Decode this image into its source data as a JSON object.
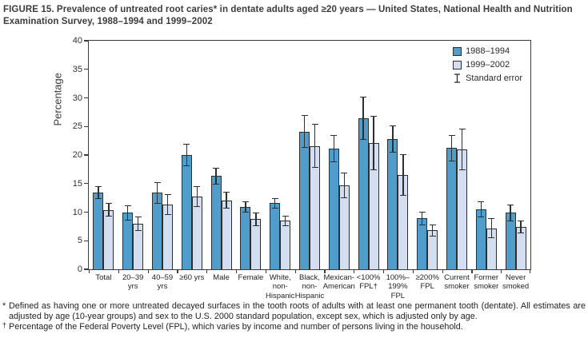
{
  "title": "FIGURE 15. Prevalence of untreated root caries* in dentate adults aged ≥20 years — United States, National Health and Nutrition Examination Survey, 1988–1994 and 1999–2002",
  "chart_data": {
    "type": "bar",
    "title": "",
    "xlabel": "",
    "ylabel": "Percentage",
    "ylim": [
      0,
      40
    ],
    "ytick_step": 5,
    "grid": false,
    "legend_position": "inside-top-right",
    "legend": [
      {
        "label": "1988–1994",
        "color": "#4f9dca",
        "symbol": "swatch"
      },
      {
        "label": "1999–2002",
        "color": "#d3def0",
        "symbol": "swatch"
      },
      {
        "label": "Standard error",
        "symbol": "error-bar"
      }
    ],
    "categories": [
      [
        "Total"
      ],
      [
        "20–39",
        "yrs"
      ],
      [
        "40–59",
        "yrs"
      ],
      [
        "≥60 yrs"
      ],
      [
        "Male"
      ],
      [
        "Female"
      ],
      [
        "White,",
        "non-",
        "Hispanic"
      ],
      [
        "Black,",
        "non-",
        "Hispanic"
      ],
      [
        "Mexican-",
        "American"
      ],
      [
        "<100%",
        "FPL†"
      ],
      [
        "100%–",
        "199%",
        "FPL"
      ],
      [
        "≥200%",
        "FPL"
      ],
      [
        "Current",
        "smoker"
      ],
      [
        "Former",
        "smoker"
      ],
      [
        "Never",
        "smoked"
      ]
    ],
    "series": [
      {
        "name": "1988–1994",
        "color": "#4f9dca",
        "values": [
          13.4,
          9.9,
          13.4,
          20.0,
          16.3,
          10.9,
          11.6,
          24.1,
          21.1,
          26.4,
          22.8,
          8.9,
          21.2,
          10.5,
          9.9
        ],
        "standard_error": [
          1.1,
          1.3,
          1.9,
          1.9,
          1.5,
          1.0,
          0.9,
          2.9,
          2.4,
          3.8,
          2.4,
          1.2,
          2.3,
          1.4,
          1.5
        ]
      },
      {
        "name": "1999–2002",
        "color": "#d3def0",
        "values": [
          10.4,
          8.0,
          11.3,
          12.7,
          12.1,
          8.8,
          8.5,
          21.6,
          14.7,
          22.1,
          16.5,
          6.8,
          21.0,
          7.2,
          7.4
        ],
        "standard_error": [
          1.2,
          1.3,
          1.8,
          1.8,
          1.4,
          1.2,
          0.9,
          3.8,
          2.2,
          4.8,
          3.6,
          1.1,
          3.6,
          1.7,
          1.1
        ]
      }
    ]
  },
  "footnotes": [
    {
      "marker": "*",
      "text": "Defined as having one or more untreated decayed surfaces in the tooth roots of adults with at least one permanent tooth (dentate). All estimates are adjusted by age (10-year groups) and sex to the U.S. 2000 standard population, except sex, which is adjusted only by age."
    },
    {
      "marker": "†",
      "text": "Percentage of the Federal Poverty Level (FPL), which varies by income and number of persons living in the household."
    }
  ]
}
